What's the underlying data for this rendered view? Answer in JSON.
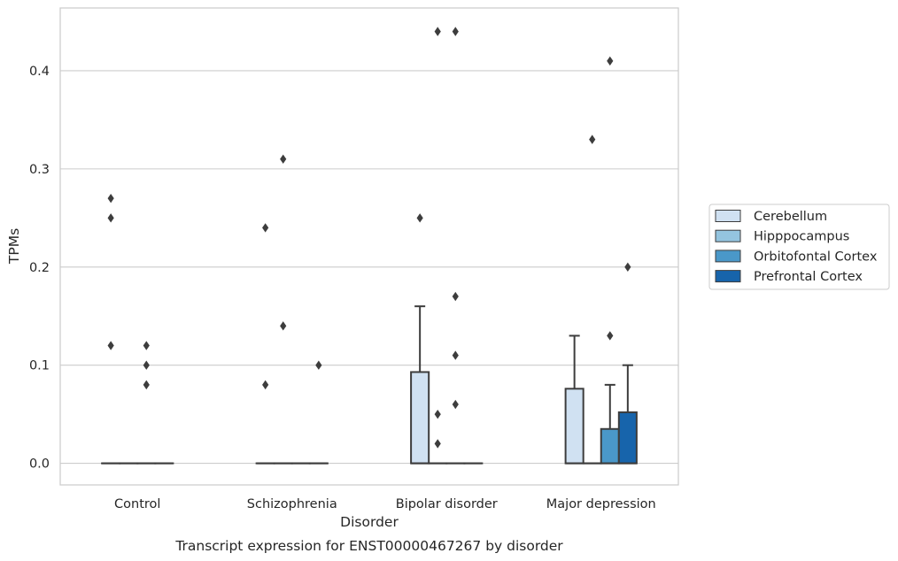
{
  "chart_data": {
    "type": "box",
    "title": "",
    "caption": "Transcript expression for ENST00000467267 by disorder",
    "xlabel": "Disorder",
    "ylabel": "TPMs",
    "ylim": [
      -0.022,
      0.464
    ],
    "yticks": [
      "0.0",
      "0.1",
      "0.2",
      "0.3",
      "0.4"
    ],
    "grid": "horizontal",
    "legend_position": "right",
    "categories": [
      "Control",
      "Schizophrenia",
      "Bipolar disorder",
      "Major depression"
    ],
    "series": [
      {
        "name": "Cerebellum",
        "color": "#d0e1f2",
        "boxes": [
          {
            "q1": 0,
            "median": 0,
            "q3": 0,
            "whisker_low": 0,
            "whisker_high": 0,
            "outliers": [
              0.27,
              0.25,
              0.12
            ]
          },
          {
            "q1": 0,
            "median": 0,
            "q3": 0,
            "whisker_low": 0,
            "whisker_high": 0,
            "outliers": [
              0.24,
              0.08
            ]
          },
          {
            "q1": 0,
            "median": 0,
            "q3": 0.093,
            "whisker_low": 0,
            "whisker_high": 0.16,
            "outliers": [
              0.25
            ]
          },
          {
            "q1": 0,
            "median": 0,
            "q3": 0.076,
            "whisker_low": 0,
            "whisker_high": 0.13,
            "outliers": []
          }
        ]
      },
      {
        "name": "Hipppocampus",
        "color": "#94c4df",
        "boxes": [
          {
            "q1": 0,
            "median": 0,
            "q3": 0,
            "whisker_low": 0,
            "whisker_high": 0,
            "outliers": []
          },
          {
            "q1": 0,
            "median": 0,
            "q3": 0,
            "whisker_low": 0,
            "whisker_high": 0,
            "outliers": [
              0.31,
              0.14
            ]
          },
          {
            "q1": 0,
            "median": 0,
            "q3": 0,
            "whisker_low": 0,
            "whisker_high": 0,
            "outliers": [
              0.44,
              0.05,
              0.02
            ]
          },
          {
            "q1": 0,
            "median": 0,
            "q3": 0,
            "whisker_low": 0,
            "whisker_high": 0,
            "outliers": [
              0.33
            ]
          }
        ]
      },
      {
        "name": "Orbitofontal Cortex",
        "color": "#4a98c9",
        "boxes": [
          {
            "q1": 0,
            "median": 0,
            "q3": 0,
            "whisker_low": 0,
            "whisker_high": 0,
            "outliers": [
              0.12,
              0.1,
              0.08
            ]
          },
          {
            "q1": 0,
            "median": 0,
            "q3": 0,
            "whisker_low": 0,
            "whisker_high": 0,
            "outliers": []
          },
          {
            "q1": 0,
            "median": 0,
            "q3": 0,
            "whisker_low": 0,
            "whisker_high": 0,
            "outliers": [
              0.44,
              0.17,
              0.11,
              0.06
            ]
          },
          {
            "q1": 0,
            "median": 0,
            "q3": 0.035,
            "whisker_low": 0,
            "whisker_high": 0.08,
            "outliers": [
              0.41,
              0.13
            ]
          }
        ]
      },
      {
        "name": "Prefrontal Cortex",
        "color": "#1764ab",
        "boxes": [
          {
            "q1": 0,
            "median": 0,
            "q3": 0,
            "whisker_low": 0,
            "whisker_high": 0,
            "outliers": []
          },
          {
            "q1": 0,
            "median": 0,
            "q3": 0,
            "whisker_low": 0,
            "whisker_high": 0,
            "outliers": [
              0.1
            ]
          },
          {
            "q1": 0,
            "median": 0,
            "q3": 0,
            "whisker_low": 0,
            "whisker_high": 0,
            "outliers": []
          },
          {
            "q1": 0,
            "median": 0,
            "q3": 0.052,
            "whisker_low": 0,
            "whisker_high": 0.1,
            "outliers": [
              0.2
            ]
          }
        ]
      }
    ]
  }
}
